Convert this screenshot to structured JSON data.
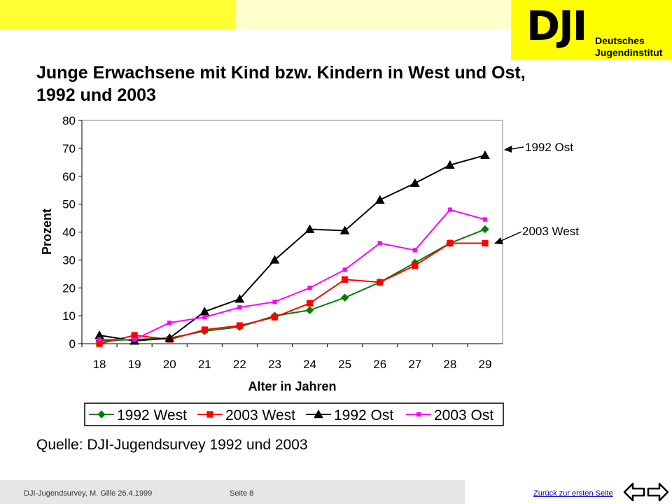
{
  "header": {
    "logo_mark": "DJI",
    "logo_text": "Deutsches\nJugendinstitut",
    "title": "Junge Erwachsene mit Kind bzw. Kindern in West und Ost, 1992 und 2003"
  },
  "chart_data": {
    "type": "line",
    "title": "Junge Erwachsene mit Kind bzw. Kindern in West und Ost, 1992 und 2003",
    "xlabel": "Alter in Jahren",
    "ylabel": "Prozent",
    "categories": [
      "18",
      "19",
      "20",
      "21",
      "22",
      "23",
      "24",
      "25",
      "26",
      "27",
      "28",
      "29"
    ],
    "ylim": [
      0,
      80
    ],
    "yticks": [
      "0",
      "10",
      "20",
      "30",
      "40",
      "50",
      "60",
      "70",
      "80"
    ],
    "grid": false,
    "legend_position": "bottom",
    "series": [
      {
        "name": "1992 West",
        "color": "#008000",
        "marker": "diamond",
        "values": [
          1,
          1.5,
          2,
          4.5,
          6,
          10,
          12,
          16.5,
          22,
          29,
          36,
          41
        ]
      },
      {
        "name": "2003 West",
        "color": "#ff0000",
        "marker": "square",
        "values": [
          0,
          3,
          1.5,
          5,
          6.5,
          9.5,
          14.5,
          23,
          22,
          28,
          36,
          36
        ]
      },
      {
        "name": "1992 Ost",
        "color": "#000000",
        "marker": "triangle",
        "values": [
          3,
          1,
          2,
          11.5,
          16,
          30,
          41,
          40.5,
          51.5,
          57.5,
          64,
          67.5
        ]
      },
      {
        "name": "2003 Ost",
        "color": "#ff00ff",
        "marker": "square",
        "values": [
          1.5,
          1.5,
          7.5,
          9.5,
          13,
          15,
          20,
          26.5,
          36,
          33.5,
          48,
          44.5
        ]
      }
    ],
    "annotations": [
      "1992 Ost",
      "2003 West"
    ]
  },
  "source": "Quelle: DJI-Jugendsurvey 1992 und 2003",
  "footer": {
    "left": "DJI-Jugendsurvey, M. Gille   26.4.1999",
    "page": "Seite 8",
    "link": "Zurück zur ersten Seite"
  }
}
